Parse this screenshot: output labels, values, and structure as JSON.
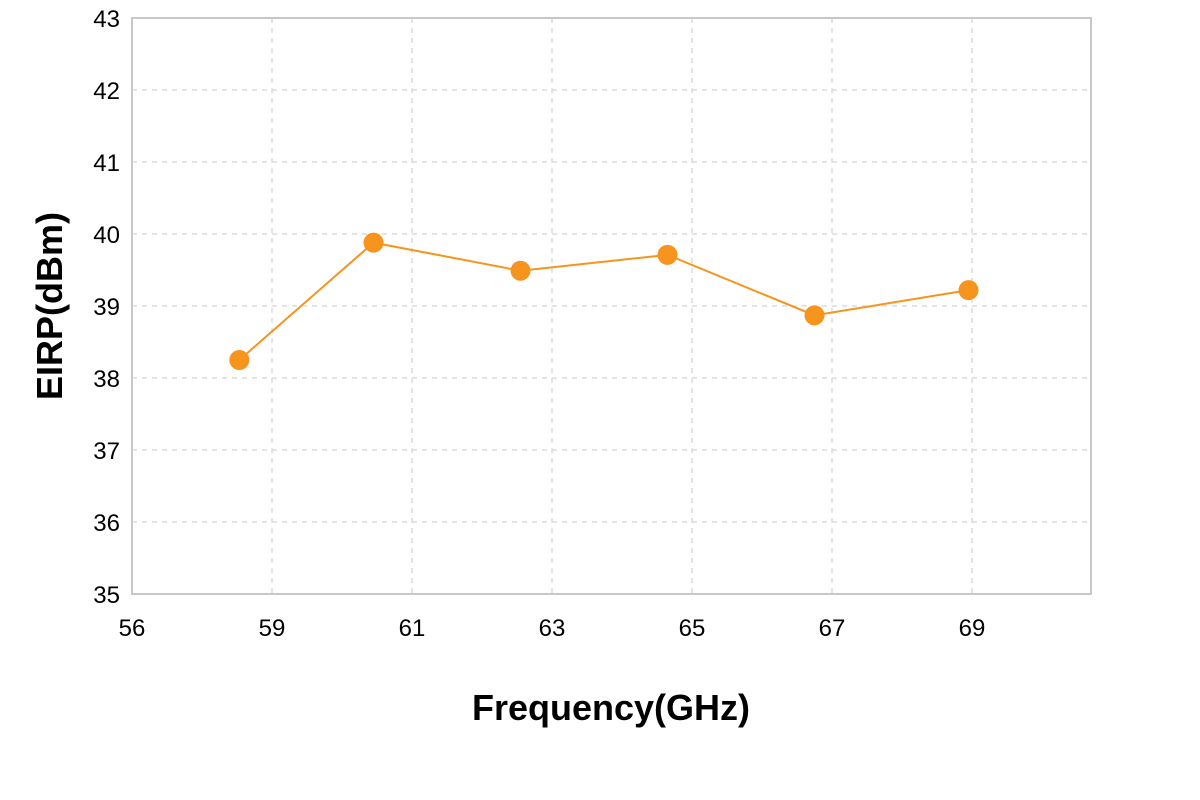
{
  "chart_data": {
    "type": "line",
    "title": "",
    "xlabel": "Frequency(GHz)",
    "ylabel": "EIRP(dBm)",
    "x_tick_labels": [
      "56",
      "59",
      "61",
      "63",
      "65",
      "67",
      "69"
    ],
    "y_tick_labels": [
      "35",
      "36",
      "37",
      "38",
      "39",
      "40",
      "41",
      "42",
      "43"
    ],
    "ylim": [
      35,
      43
    ],
    "grid": true,
    "series": [
      {
        "color": "#f7941d",
        "x": [
          58.3,
          60.45,
          62.55,
          64.65,
          66.75,
          68.95
        ],
        "y": [
          38.25,
          39.88,
          39.49,
          39.71,
          38.87,
          39.22
        ]
      }
    ]
  }
}
